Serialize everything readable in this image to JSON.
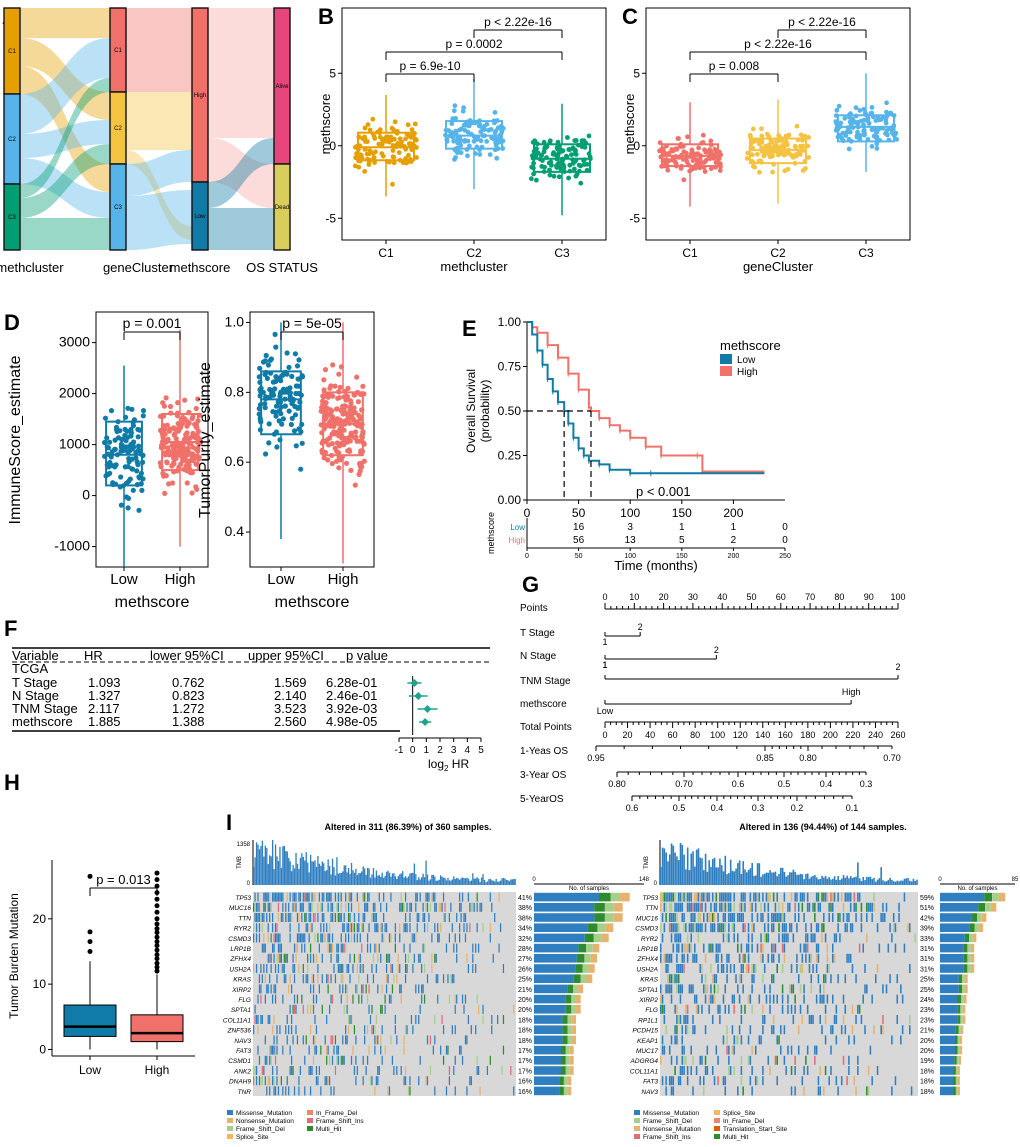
{
  "colors": {
    "orange": "#E69F00",
    "blue": "#56B4E9",
    "green": "#009E73",
    "salmon": "#F0716A",
    "yellow": "#F5C342",
    "teal": "#0F7BA6",
    "pink": "#E8457C",
    "olive": "#D9CE5C",
    "lightPink": "#F6A8A4",
    "mut_missense": "#2F7EC0",
    "mut_nonsense": "#E6B26E",
    "mut_frameDel": "#A6CF8A",
    "mut_frameIns": "#E36B77",
    "mut_splice": "#F5B75A",
    "mut_inframeDel": "#E88A68",
    "mut_multi": "#2E8B2E",
    "mut_translation": "#D95F02"
  },
  "panelA": {
    "letter": "A",
    "axes": [
      "methcluster",
      "geneCluster",
      "methscore",
      "OS STATUS"
    ],
    "col1": [
      "C1",
      "C2",
      "C3"
    ],
    "col2": [
      "C1",
      "C2",
      "C3"
    ],
    "col3": [
      "High",
      "Low"
    ],
    "col4": [
      "Alive",
      "Dead"
    ]
  },
  "panelB": {
    "letter": "B",
    "ylabel": "methscore",
    "xlabel": "methcluster",
    "groups": [
      "C1",
      "C2",
      "C3"
    ],
    "yticks": [
      -5,
      0,
      5
    ],
    "ylim": [
      -6.5,
      9.5
    ],
    "stats": [
      {
        "median": -0.1,
        "q1": -1.0,
        "q3": 0.9,
        "lo": -3.5,
        "hi": 3.5
      },
      {
        "median": 0.7,
        "q1": -0.2,
        "q3": 1.7,
        "lo": -3.0,
        "hi": 4.6
      },
      {
        "median": -0.9,
        "q1": -1.8,
        "q3": 0.1,
        "lo": -4.8,
        "hi": 2.9
      }
    ],
    "pvals": [
      "p = 6.9e-10",
      "p = 0.0002",
      "p < 2.22e-16"
    ]
  },
  "panelC": {
    "letter": "C",
    "ylabel": "methscore",
    "xlabel": "geneCluster",
    "groups": [
      "C1",
      "C2",
      "C3"
    ],
    "yticks": [
      -5,
      0,
      5
    ],
    "ylim": [
      -6.5,
      9.5
    ],
    "stats": [
      {
        "median": -0.7,
        "q1": -1.4,
        "q3": 0.1,
        "lo": -4.2,
        "hi": 3.0
      },
      {
        "median": -0.3,
        "q1": -1.2,
        "q3": 0.5,
        "lo": -4.0,
        "hi": 3.2
      },
      {
        "median": 1.3,
        "q1": 0.3,
        "q3": 2.1,
        "lo": -1.8,
        "hi": 5.0
      }
    ],
    "pvals": [
      "p = 0.008",
      "p < 2.22e-16",
      "p < 2.22e-16"
    ]
  },
  "panelD": {
    "letter": "D",
    "left": {
      "ylabel": "ImmuneScore_estimate",
      "xlabel": "methscore",
      "groups": [
        "Low",
        "High"
      ],
      "yticks": [
        -1000,
        0,
        1000,
        2000,
        3000
      ],
      "ylim": [
        -1400,
        3600
      ],
      "stats": [
        {
          "median": 800,
          "q1": 200,
          "q3": 1450,
          "lo": -1400,
          "hi": 2550
        },
        {
          "median": 1050,
          "q1": 500,
          "q3": 1600,
          "lo": -1000,
          "hi": 3250
        }
      ],
      "pval": "p = 0.001"
    },
    "right": {
      "ylabel": "TumorPurity_estimate",
      "xlabel": "methscore",
      "groups": [
        "Low",
        "High"
      ],
      "yticks": [
        "0.4",
        "0.6",
        "0.8",
        "1.0"
      ],
      "ylim": [
        0.3,
        1.03
      ],
      "stats": [
        {
          "median": 0.78,
          "q1": 0.68,
          "q3": 0.86,
          "lo": 0.38,
          "hi": 1.0
        },
        {
          "median": 0.71,
          "q1": 0.62,
          "q3": 0.8,
          "lo": 0.31,
          "hi": 1.0
        }
      ],
      "pval": "p = 5e-05"
    }
  },
  "panelE": {
    "letter": "E",
    "ylabel1": "Overall Survival",
    "ylabel2": "(probability)",
    "xlabel": "Time (months)",
    "legendTitle": "methscore",
    "legend": [
      "Low",
      "High"
    ],
    "pval": "p < 0.001",
    "yticks": [
      "0.00",
      "0.25",
      "0.50",
      "0.75",
      "1.00"
    ],
    "xticks": [
      "0",
      "50",
      "100",
      "150",
      "200"
    ],
    "tableTicks": [
      "0",
      "50",
      "100",
      "150",
      "200",
      "250"
    ],
    "tableLabel": "methscore",
    "riskLow": [
      "Low",
      "16",
      "3",
      "1",
      "1",
      "0"
    ],
    "riskHigh": [
      "High",
      "56",
      "13",
      "5",
      "2",
      "0"
    ],
    "lowCurve": [
      [
        0,
        1
      ],
      [
        5,
        0.93
      ],
      [
        10,
        0.84
      ],
      [
        15,
        0.76
      ],
      [
        20,
        0.68
      ],
      [
        25,
        0.61
      ],
      [
        30,
        0.55
      ],
      [
        36,
        0.5
      ],
      [
        40,
        0.43
      ],
      [
        45,
        0.35
      ],
      [
        50,
        0.29
      ],
      [
        55,
        0.25
      ],
      [
        60,
        0.22
      ],
      [
        70,
        0.2
      ],
      [
        80,
        0.17
      ],
      [
        100,
        0.15
      ],
      [
        120,
        0.15
      ],
      [
        230,
        0.15
      ]
    ],
    "highCurve": [
      [
        0,
        1
      ],
      [
        5,
        0.97
      ],
      [
        10,
        0.94
      ],
      [
        20,
        0.87
      ],
      [
        30,
        0.8
      ],
      [
        40,
        0.71
      ],
      [
        50,
        0.62
      ],
      [
        60,
        0.52
      ],
      [
        62,
        0.5
      ],
      [
        70,
        0.46
      ],
      [
        80,
        0.42
      ],
      [
        90,
        0.39
      ],
      [
        100,
        0.35
      ],
      [
        115,
        0.3
      ],
      [
        130,
        0.25
      ],
      [
        165,
        0.25
      ],
      [
        170,
        0.16
      ],
      [
        230,
        0.16
      ]
    ]
  },
  "panelF": {
    "letter": "F",
    "headers": [
      "Variable",
      "HR",
      "lower 95%CI",
      "upper 95%CI",
      "p value"
    ],
    "group": "TCGA",
    "rows": [
      [
        "T Stage",
        "1.093",
        "0.762",
        "1.569",
        "6.28e-01"
      ],
      [
        "N Stage",
        "1.327",
        "0.823",
        "2.140",
        "2.46e-01"
      ],
      [
        "TNM Stage",
        "2.117",
        "1.272",
        "3.523",
        "3.92e-03"
      ],
      [
        "methscore",
        "1.885",
        "1.388",
        "2.560",
        "4.98e-05"
      ]
    ],
    "forest": [
      {
        "est": 0.13,
        "lo": -0.39,
        "hi": 0.65
      },
      {
        "est": 0.41,
        "lo": -0.28,
        "hi": 1.1
      },
      {
        "est": 1.08,
        "lo": 0.35,
        "hi": 1.82
      },
      {
        "est": 0.91,
        "lo": 0.47,
        "hi": 1.36
      }
    ],
    "xticks": [
      "-1",
      "0",
      "1",
      "2",
      "3",
      "4",
      "5"
    ],
    "xlabel": "log",
    "xlabelSub": "2",
    "xlabelTail": " HR"
  },
  "panelG": {
    "letter": "G",
    "rows": [
      "Points",
      "T Stage",
      "N Stage",
      "TNM Stage",
      "methscore",
      "Total Points",
      "1-Yeas OS",
      "3-Year OS",
      "5-YearOS"
    ],
    "pointTicks": [
      "0",
      "10",
      "20",
      "30",
      "40",
      "50",
      "60",
      "70",
      "80",
      "90",
      "100"
    ],
    "tStage": [
      "1",
      "2"
    ],
    "nStage": [
      "1",
      "2"
    ],
    "tnmStage": [
      "1",
      "2"
    ],
    "meth": [
      "Low",
      "High"
    ],
    "totalTicks": [
      "0",
      "20",
      "40",
      "60",
      "80",
      "100",
      "120",
      "140",
      "160",
      "180",
      "200",
      "220",
      "240",
      "260"
    ],
    "os1": [
      "0.95",
      "0.85",
      "0.80",
      "0.70"
    ],
    "os3": [
      "0.80",
      "0.70",
      "0.6",
      "0.5",
      "0.4",
      "0.3"
    ],
    "os5": [
      "0.6",
      "0.5",
      "0.4",
      "0.3",
      "0.2",
      "0.1"
    ]
  },
  "panelH": {
    "letter": "H",
    "ylabel": "Tumor Burden Mutation",
    "groups": [
      "Low",
      "High"
    ],
    "yticks": [
      "0",
      "10",
      "20"
    ],
    "ylim": [
      -1,
      29
    ],
    "stats": [
      {
        "median": 3.5,
        "q1": 2.0,
        "q3": 6.8,
        "lo": 0.0,
        "hi": 13.5
      },
      {
        "median": 2.5,
        "q1": 1.2,
        "q3": 5.3,
        "lo": 0.0,
        "hi": 11.5
      }
    ],
    "pval": "p = 0.013"
  },
  "panelI": {
    "letter": "I",
    "left": {
      "title": "Altered in 311 (86.39%) of 360 samples.",
      "tmbLabel": "TMB",
      "tmbMax": "1358",
      "tmbMin": "0",
      "barMin": "0",
      "barMax": "148",
      "barLabel": "No. of samples",
      "genes": [
        "TP53",
        "MUC16",
        "TTN",
        "RYR2",
        "CSMD3",
        "LRP1B",
        "ZFHX4",
        "USH2A",
        "KRAS",
        "XIRP2",
        "FLG",
        "SPTA1",
        "COL11A1",
        "ZNF536",
        "NAV3",
        "FAT3",
        "CSMD1",
        "ANK2",
        "DNAH9",
        "TNR"
      ],
      "pcts": [
        "41%",
        "38%",
        "38%",
        "34%",
        "32%",
        "28%",
        "27%",
        "26%",
        "25%",
        "21%",
        "20%",
        "20%",
        "18%",
        "18%",
        "18%",
        "17%",
        "17%",
        "17%",
        "16%",
        "16%"
      ],
      "legend": [
        "Missense_Mutation",
        "Nonsense_Mutation",
        "Frame_Shift_Del",
        "Splice_Site",
        "In_Frame_Del",
        "Frame_Shift_Ins",
        "Multi_Hit"
      ]
    },
    "right": {
      "title": "Altered in 136 (94.44%) of 144 samples.",
      "tmbLabel": "TMB",
      "tmbMax": "",
      "tmbMin": "0",
      "barMin": "0",
      "barMax": "85",
      "barLabel": "No. of samples",
      "genes": [
        "TP53",
        "TTN",
        "MUC16",
        "CSMD3",
        "RYR2",
        "LRP1B",
        "ZFHX4",
        "USH2A",
        "KRAS",
        "SPTA1",
        "XIRP2",
        "FLG",
        "RP1L1",
        "PCDH15",
        "KEAP1",
        "MUC17",
        "ADGRG4",
        "COL11A1",
        "FAT3",
        "NAV3"
      ],
      "pcts": [
        "59%",
        "51%",
        "42%",
        "39%",
        "33%",
        "31%",
        "31%",
        "31%",
        "25%",
        "25%",
        "24%",
        "23%",
        "23%",
        "21%",
        "20%",
        "20%",
        "19%",
        "18%",
        "18%",
        "18%"
      ],
      "legend": [
        "Missense_Mutation",
        "Frame_Shift_Del",
        "Nonsense_Mutation",
        "Frame_Shift_Ins",
        "Splice_Site",
        "In_Frame_Del",
        "Translation_Start_Site",
        "Multi_Hit"
      ]
    }
  }
}
